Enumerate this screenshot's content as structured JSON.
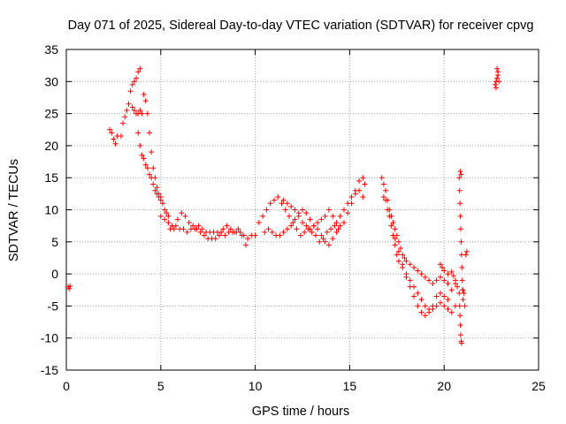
{
  "chart_data": {
    "type": "scatter",
    "title": "Day 071 of 2025, Sidereal Day-to-day VTEC variation (SDTVAR) for receiver cpvg",
    "xlabel": "GPS time / hours",
    "ylabel": "SDTVAR / TECUs",
    "xlim": [
      0,
      25
    ],
    "ylim": [
      -15,
      35
    ],
    "x_ticks": [
      0,
      5,
      10,
      15,
      20,
      25
    ],
    "y_ticks": [
      -15,
      -10,
      -5,
      0,
      5,
      10,
      15,
      20,
      25,
      30,
      35
    ],
    "grid": true,
    "marker": "+",
    "series": [
      {
        "name": "SDTVAR",
        "color": "#ff0000",
        "points": [
          [
            0.1,
            -2.0
          ],
          [
            0.15,
            -2.3
          ],
          [
            0.2,
            -1.9
          ],
          [
            2.3,
            22.5
          ],
          [
            2.4,
            22.0
          ],
          [
            2.5,
            21.0
          ],
          [
            2.6,
            20.3
          ],
          [
            2.7,
            21.5
          ],
          [
            2.9,
            21.5
          ],
          [
            3.0,
            23.5
          ],
          [
            3.1,
            24.5
          ],
          [
            3.2,
            25.5
          ],
          [
            3.3,
            26.5
          ],
          [
            3.4,
            28.5
          ],
          [
            3.5,
            29.5
          ],
          [
            3.6,
            30.0
          ],
          [
            3.7,
            30.5
          ],
          [
            3.8,
            31.5
          ],
          [
            3.9,
            32.0
          ],
          [
            3.5,
            26.0
          ],
          [
            3.6,
            25.5
          ],
          [
            3.7,
            25.0
          ],
          [
            3.8,
            25.0
          ],
          [
            3.9,
            25.5
          ],
          [
            4.0,
            25.0
          ],
          [
            3.8,
            22.0
          ],
          [
            3.9,
            20.0
          ],
          [
            4.0,
            18.5
          ],
          [
            4.1,
            18.0
          ],
          [
            4.2,
            17.0
          ],
          [
            4.3,
            16.5
          ],
          [
            4.4,
            15.5
          ],
          [
            4.5,
            15.0
          ],
          [
            4.6,
            14.0
          ],
          [
            4.7,
            13.0
          ],
          [
            4.8,
            12.5
          ],
          [
            4.9,
            12.0
          ],
          [
            5.0,
            11.5
          ],
          [
            4.1,
            28.0
          ],
          [
            4.2,
            27.0
          ],
          [
            4.3,
            25.0
          ],
          [
            4.4,
            22.0
          ],
          [
            4.5,
            19.0
          ],
          [
            4.6,
            16.5
          ],
          [
            4.7,
            15.0
          ],
          [
            4.8,
            13.5
          ],
          [
            4.9,
            12.5
          ],
          [
            5.0,
            12.0
          ],
          [
            5.1,
            11.0
          ],
          [
            5.2,
            10.0
          ],
          [
            5.3,
            9.5
          ],
          [
            5.4,
            9.0
          ],
          [
            5.0,
            9.0
          ],
          [
            5.2,
            8.5
          ],
          [
            5.4,
            8.0
          ],
          [
            5.6,
            7.5
          ],
          [
            5.8,
            7.5
          ],
          [
            6.0,
            7.0
          ],
          [
            6.2,
            7.0
          ],
          [
            6.4,
            6.5
          ],
          [
            6.6,
            7.0
          ],
          [
            6.8,
            7.0
          ],
          [
            7.0,
            7.5
          ],
          [
            7.2,
            7.0
          ],
          [
            7.4,
            6.5
          ],
          [
            7.6,
            6.5
          ],
          [
            7.8,
            6.5
          ],
          [
            8.0,
            6.5
          ],
          [
            8.2,
            6.5
          ],
          [
            8.4,
            6.0
          ],
          [
            8.6,
            6.5
          ],
          [
            8.8,
            6.5
          ],
          [
            9.0,
            6.5
          ],
          [
            9.2,
            6.5
          ],
          [
            9.4,
            6.0
          ],
          [
            9.6,
            5.5
          ],
          [
            9.8,
            6.0
          ],
          [
            5.5,
            7.0
          ],
          [
            5.7,
            7.0
          ],
          [
            5.9,
            8.5
          ],
          [
            6.1,
            9.5
          ],
          [
            6.3,
            9.0
          ],
          [
            6.5,
            8.0
          ],
          [
            6.7,
            7.5
          ],
          [
            6.9,
            7.0
          ],
          [
            7.1,
            6.5
          ],
          [
            7.3,
            6.0
          ],
          [
            7.5,
            5.5
          ],
          [
            7.7,
            5.5
          ],
          [
            7.9,
            5.5
          ],
          [
            8.1,
            6.0
          ],
          [
            8.3,
            7.0
          ],
          [
            8.5,
            7.5
          ],
          [
            8.7,
            7.0
          ],
          [
            8.9,
            6.5
          ],
          [
            9.1,
            7.0
          ],
          [
            9.3,
            6.0
          ],
          [
            9.5,
            4.5
          ],
          [
            10.0,
            6.0
          ],
          [
            10.2,
            8.0
          ],
          [
            10.4,
            9.0
          ],
          [
            10.6,
            10.0
          ],
          [
            10.8,
            11.0
          ],
          [
            11.0,
            11.5
          ],
          [
            11.2,
            12.0
          ],
          [
            11.4,
            11.0
          ],
          [
            11.6,
            10.0
          ],
          [
            11.8,
            9.0
          ],
          [
            12.0,
            8.0
          ],
          [
            12.2,
            7.0
          ],
          [
            12.4,
            6.0
          ],
          [
            12.6,
            6.5
          ],
          [
            12.8,
            7.0
          ],
          [
            13.0,
            6.5
          ],
          [
            13.2,
            6.0
          ],
          [
            13.4,
            5.0
          ],
          [
            13.6,
            5.5
          ],
          [
            13.8,
            6.5
          ],
          [
            14.0,
            7.0
          ],
          [
            14.2,
            7.5
          ],
          [
            14.4,
            7.0
          ],
          [
            10.5,
            6.5
          ],
          [
            10.7,
            7.0
          ],
          [
            10.9,
            6.5
          ],
          [
            11.1,
            6.0
          ],
          [
            11.3,
            6.0
          ],
          [
            11.5,
            6.5
          ],
          [
            11.7,
            7.0
          ],
          [
            11.9,
            7.5
          ],
          [
            12.1,
            8.5
          ],
          [
            12.3,
            9.5
          ],
          [
            12.5,
            10.0
          ],
          [
            12.7,
            9.5
          ],
          [
            12.9,
            8.5
          ],
          [
            13.1,
            7.5
          ],
          [
            13.3,
            7.0
          ],
          [
            13.5,
            6.0
          ],
          [
            13.7,
            5.0
          ],
          [
            13.9,
            4.5
          ],
          [
            14.1,
            5.5
          ],
          [
            14.3,
            6.5
          ],
          [
            14.5,
            7.5
          ],
          [
            14.7,
            8.0
          ],
          [
            14.9,
            9.5
          ],
          [
            15.1,
            11.0
          ],
          [
            15.3,
            13.0
          ],
          [
            15.5,
            14.5
          ],
          [
            15.7,
            15.0
          ],
          [
            15.8,
            14.0
          ],
          [
            11.5,
            11.5
          ],
          [
            11.7,
            11.0
          ],
          [
            11.9,
            10.5
          ],
          [
            12.1,
            10.0
          ],
          [
            12.3,
            9.0
          ],
          [
            12.5,
            8.0
          ],
          [
            12.7,
            7.5
          ],
          [
            12.9,
            7.0
          ],
          [
            13.1,
            7.5
          ],
          [
            13.3,
            8.0
          ],
          [
            13.5,
            8.5
          ],
          [
            13.7,
            9.0
          ],
          [
            13.9,
            10.0
          ],
          [
            14.1,
            9.0
          ],
          [
            14.3,
            8.0
          ],
          [
            14.5,
            9.0
          ],
          [
            14.7,
            10.0
          ],
          [
            14.9,
            11.0
          ],
          [
            15.1,
            12.0
          ],
          [
            15.3,
            12.5
          ],
          [
            15.5,
            13.0
          ],
          [
            15.7,
            12.0
          ],
          [
            16.7,
            15.0
          ],
          [
            16.8,
            14.0
          ],
          [
            16.9,
            13.0
          ],
          [
            17.0,
            11.5
          ],
          [
            17.1,
            10.0
          ],
          [
            17.2,
            9.0
          ],
          [
            17.3,
            8.0
          ],
          [
            17.4,
            7.0
          ],
          [
            17.5,
            6.0
          ],
          [
            17.6,
            5.0
          ],
          [
            17.7,
            4.0
          ],
          [
            17.8,
            3.0
          ],
          [
            17.9,
            2.5
          ],
          [
            18.0,
            2.0
          ],
          [
            18.2,
            1.5
          ],
          [
            18.4,
            1.0
          ],
          [
            18.6,
            0.5
          ],
          [
            18.8,
            0.0
          ],
          [
            19.0,
            -0.5
          ],
          [
            19.2,
            -1.0
          ],
          [
            19.4,
            -1.5
          ],
          [
            19.6,
            -1.0
          ],
          [
            19.8,
            -0.5
          ],
          [
            20.0,
            -1.0
          ],
          [
            20.2,
            -1.5
          ],
          [
            16.8,
            12.0
          ],
          [
            16.9,
            11.5
          ],
          [
            17.0,
            10.0
          ],
          [
            17.1,
            9.0
          ],
          [
            17.2,
            7.5
          ],
          [
            17.3,
            6.0
          ],
          [
            17.4,
            4.5
          ],
          [
            17.5,
            3.0
          ],
          [
            17.6,
            2.0
          ],
          [
            17.8,
            1.0
          ],
          [
            18.0,
            0.0
          ],
          [
            18.2,
            -1.0
          ],
          [
            18.4,
            -2.0
          ],
          [
            18.6,
            -3.0
          ],
          [
            18.8,
            -4.0
          ],
          [
            19.0,
            -5.0
          ],
          [
            19.2,
            -5.5
          ],
          [
            19.4,
            -5.0
          ],
          [
            19.6,
            -3.5
          ],
          [
            19.8,
            -3.0
          ],
          [
            20.0,
            -3.5
          ],
          [
            20.2,
            -4.0
          ],
          [
            20.4,
            -2.5
          ],
          [
            20.6,
            -1.5
          ],
          [
            17.4,
            5.5
          ],
          [
            17.6,
            3.5
          ],
          [
            17.8,
            1.5
          ],
          [
            18.0,
            -0.5
          ],
          [
            18.2,
            -2.0
          ],
          [
            18.4,
            -3.5
          ],
          [
            18.6,
            -5.0
          ],
          [
            18.8,
            -6.0
          ],
          [
            19.0,
            -6.5
          ],
          [
            19.2,
            -6.0
          ],
          [
            19.4,
            -5.5
          ],
          [
            19.6,
            -5.0
          ],
          [
            19.8,
            -4.5
          ],
          [
            20.0,
            -5.0
          ],
          [
            20.2,
            -5.5
          ],
          [
            20.4,
            -6.0
          ],
          [
            20.6,
            -5.0
          ],
          [
            19.8,
            1.5
          ],
          [
            19.9,
            1.0
          ],
          [
            20.0,
            0.5
          ],
          [
            20.2,
            0.0
          ],
          [
            20.4,
            0.3
          ],
          [
            20.5,
            -0.3
          ],
          [
            20.6,
            -1.0
          ],
          [
            20.7,
            -2.0
          ],
          [
            20.8,
            15.0
          ],
          [
            20.82,
            13.0
          ],
          [
            20.84,
            11.0
          ],
          [
            20.86,
            9.0
          ],
          [
            20.88,
            7.0
          ],
          [
            20.9,
            5.0
          ],
          [
            20.92,
            3.0
          ],
          [
            20.94,
            1.0
          ],
          [
            20.96,
            -1.0
          ],
          [
            20.98,
            -2.5
          ],
          [
            21.0,
            -4.0
          ],
          [
            20.8,
            -3.0
          ],
          [
            20.82,
            -5.0
          ],
          [
            20.84,
            -6.5
          ],
          [
            20.86,
            -8.0
          ],
          [
            20.88,
            -9.5
          ],
          [
            20.9,
            -10.5
          ],
          [
            20.92,
            -10.8
          ],
          [
            20.85,
            16.0
          ],
          [
            20.9,
            15.5
          ],
          [
            21.0,
            -2.5
          ],
          [
            21.05,
            -3.0
          ],
          [
            21.1,
            -5.0
          ],
          [
            21.15,
            3.0
          ],
          [
            21.2,
            3.5
          ],
          [
            22.7,
            29.5
          ],
          [
            22.75,
            30.0
          ],
          [
            22.8,
            30.5
          ],
          [
            22.85,
            31.0
          ],
          [
            22.8,
            32.0
          ],
          [
            22.85,
            31.5
          ],
          [
            22.9,
            30.0
          ],
          [
            22.75,
            29.0
          ]
        ]
      }
    ]
  }
}
